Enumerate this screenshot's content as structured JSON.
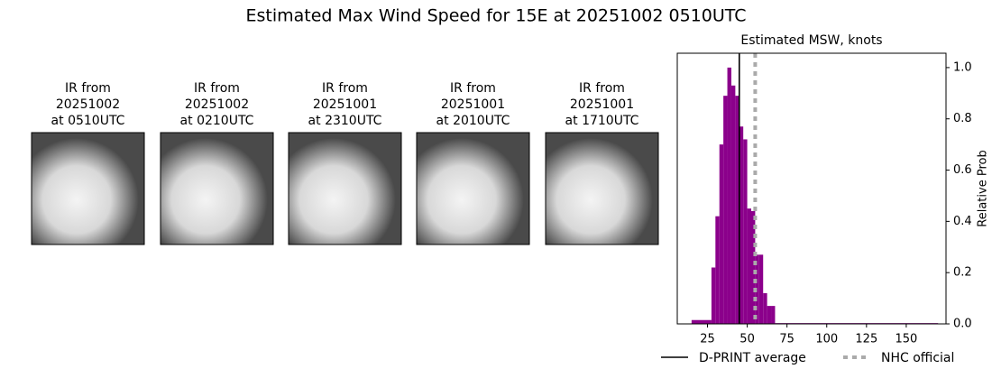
{
  "title": "Estimated Max Wind Speed for 15E at 20251002 0510UTC",
  "panels": [
    {
      "lines": [
        "IR from",
        "20251002",
        "at 0510UTC"
      ]
    },
    {
      "lines": [
        "IR from",
        "20251002",
        "at 0210UTC"
      ]
    },
    {
      "lines": [
        "IR from",
        "20251001",
        "at 2310UTC"
      ]
    },
    {
      "lines": [
        "IR from",
        "20251001",
        "at 2010UTC"
      ]
    },
    {
      "lines": [
        "IR from",
        "20251001",
        "at 1710UTC"
      ]
    }
  ],
  "chart_data": {
    "type": "histogram",
    "title": "Estimated MSW, knots",
    "ylabel": "Relative Prob",
    "bins": [
      15,
      27.5,
      30,
      32.5,
      35,
      37.5,
      40,
      42.5,
      45,
      47.5,
      50,
      52.5,
      55,
      57.5,
      60,
      62.5,
      65,
      67.5,
      170
    ],
    "counts": [
      0.015,
      0.22,
      0.42,
      0.7,
      0.89,
      1.0,
      0.93,
      0.89,
      0.77,
      0.72,
      0.45,
      0.44,
      0.27,
      0.27,
      0.12,
      0.07,
      0.07,
      0.003
    ],
    "color": "#8b008b",
    "xlim": [
      6,
      175
    ],
    "xticks": [
      25,
      50,
      75,
      100,
      125,
      150
    ],
    "ylim": [
      0,
      1.056
    ],
    "yticks": [
      {
        "value": 0,
        "label": "0.0"
      },
      0.2,
      0.4,
      0.6,
      0.8,
      {
        "value": 1,
        "label": "1.0"
      }
    ],
    "lines": [
      {
        "name": "D-PRINT average",
        "x": 45,
        "color": "#000000",
        "dashed": false
      },
      {
        "name": "NHC official",
        "x": 55,
        "color": "#aaaaaa",
        "dashed": true
      }
    ]
  }
}
